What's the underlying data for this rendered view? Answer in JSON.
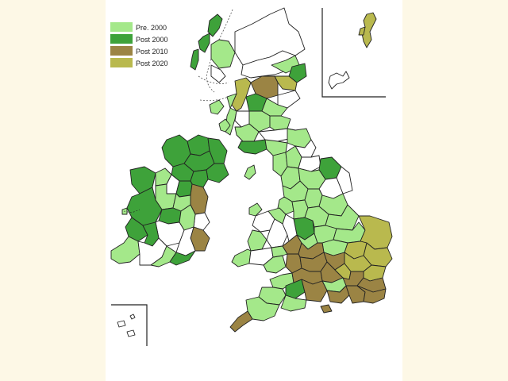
{
  "legend": {
    "items": [
      {
        "label": "Pre.  2000",
        "color": "#a4e88a"
      },
      {
        "label": "Post 2000",
        "color": "#3ea23a"
      },
      {
        "label": "Post 2010",
        "color": "#9b8444"
      },
      {
        "label": "Post 2020",
        "color": "#b9b94e"
      }
    ]
  },
  "colors": {
    "page_background": "#fdf8e6",
    "map_background": "#ffffff",
    "unshaded_region": "#ffffff",
    "border": "#222222"
  }
}
